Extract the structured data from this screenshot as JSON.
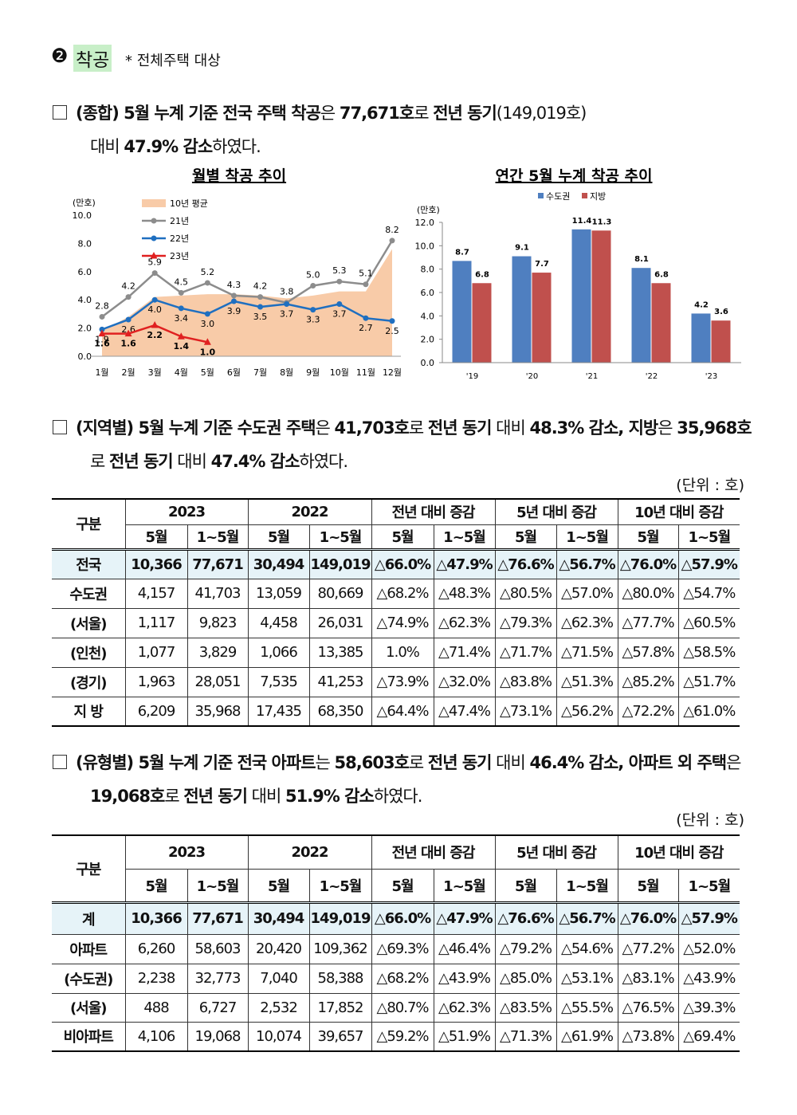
{
  "heading": {
    "number": "❷",
    "title": "착공",
    "note": "* 전체주택 대상"
  },
  "paragraphs": [
    {
      "lines": [
        [
          {
            "text": "(종합) 5월 누계 기준 전국 주택 착공",
            "bold": true
          },
          {
            "text": "은 ",
            "bold": false
          },
          {
            "text": "77,671호",
            "bold": true
          },
          {
            "text": "로 ",
            "bold": false
          },
          {
            "text": "전년 동기",
            "bold": true
          },
          {
            "text": "(149,019호)",
            "bold": false
          }
        ],
        [
          {
            "text": "대비 ",
            "bold": false
          },
          {
            "text": "47.9% 감소",
            "bold": true
          },
          {
            "text": "하였다.",
            "bold": false
          }
        ]
      ]
    },
    {
      "lines": [
        [
          {
            "text": "(지역별) 5월 누계 기준 수도권 주택",
            "bold": true
          },
          {
            "text": "은 ",
            "bold": false
          },
          {
            "text": "41,703호",
            "bold": true
          },
          {
            "text": "로 ",
            "bold": false
          },
          {
            "text": "전년 동기",
            "bold": true
          },
          {
            "text": " 대비 ",
            "bold": false
          },
          {
            "text": "48.3% 감소, 지방",
            "bold": true
          },
          {
            "text": "은 ",
            "bold": false
          },
          {
            "text": "35,968호",
            "bold": true
          }
        ],
        [
          {
            "text": "로 ",
            "bold": false
          },
          {
            "text": "전년 동기",
            "bold": true
          },
          {
            "text": " 대비 ",
            "bold": false
          },
          {
            "text": "47.4% 감소",
            "bold": true
          },
          {
            "text": "하였다.",
            "bold": false
          }
        ]
      ]
    },
    {
      "lines": [
        [
          {
            "text": "(유형별) 5월 누계 기준 전국 아파트",
            "bold": true
          },
          {
            "text": "는 ",
            "bold": false
          },
          {
            "text": "58,603호",
            "bold": true
          },
          {
            "text": "로 ",
            "bold": false
          },
          {
            "text": "전년 동기",
            "bold": true
          },
          {
            "text": " 대비 ",
            "bold": false
          },
          {
            "text": "46.4% 감소, 아파트 외 주택",
            "bold": true
          },
          {
            "text": "은",
            "bold": false
          }
        ],
        [
          {
            "text": "19,068호",
            "bold": true
          },
          {
            "text": "로 ",
            "bold": false
          },
          {
            "text": "전년 동기",
            "bold": true
          },
          {
            "text": " 대비 ",
            "bold": false
          },
          {
            "text": "51.9% 감소",
            "bold": true
          },
          {
            "text": "하였다.",
            "bold": false
          }
        ]
      ]
    }
  ],
  "chart_data": [
    {
      "type": "line",
      "title": "월별 착공 추이",
      "ylabel": "(만호)",
      "categories": [
        "1월",
        "2월",
        "3월",
        "4월",
        "5월",
        "6월",
        "7월",
        "8월",
        "9월",
        "10월",
        "11월",
        "12월"
      ],
      "ylim": [
        0,
        10
      ],
      "yticks": [
        {
          "value": 0,
          "label": "0.0"
        },
        {
          "value": 2,
          "label": "2.0"
        },
        {
          "value": 4,
          "label": "4.0"
        },
        {
          "value": 6,
          "label": "6.0"
        },
        {
          "value": 8,
          "label": "8.0"
        },
        {
          "value": 10,
          "label": "10.0"
        }
      ],
      "series": [
        {
          "name": "10년 평균",
          "kind": "area",
          "color": "#f8cba8",
          "values": [
            1.8,
            2.8,
            4.2,
            4.3,
            4.4,
            4.4,
            4.3,
            4.1,
            4.3,
            4.6,
            4.6,
            7.6
          ]
        },
        {
          "name": "21년",
          "kind": "line",
          "marker": "circle",
          "color": "#8c8c8c",
          "values": [
            2.8,
            4.2,
            5.9,
            4.5,
            5.2,
            4.3,
            4.2,
            3.8,
            5.0,
            5.3,
            5.1,
            8.2
          ],
          "value_labels": [
            "2.8",
            "4.2",
            "5.9",
            "4.5",
            "5.2",
            "4.3",
            "4.2",
            "3.8",
            "5.0",
            "5.3",
            "5.1",
            "8.2"
          ]
        },
        {
          "name": "22년",
          "kind": "line",
          "marker": "circle",
          "color": "#1f6fc0",
          "values": [
            1.9,
            2.6,
            4.0,
            3.4,
            3.0,
            3.9,
            3.5,
            3.7,
            3.3,
            3.7,
            2.7,
            2.5
          ],
          "value_labels": [
            "1.9",
            "2.6",
            "4.0",
            "3.4",
            "3.0",
            "3.9",
            "3.5",
            "3.7",
            "3.3",
            "3.7",
            "2.7",
            "2.5"
          ]
        },
        {
          "name": "23년",
          "kind": "line",
          "marker": "triangle",
          "color": "#e02020",
          "values": [
            1.6,
            1.6,
            2.2,
            1.4,
            1.0,
            null,
            null,
            null,
            null,
            null,
            null,
            null
          ],
          "value_labels": [
            "1.6",
            "1.6",
            "2.2",
            "1.4",
            "1.0",
            null,
            null,
            null,
            null,
            null,
            null,
            null
          ]
        }
      ]
    },
    {
      "type": "bar",
      "title": "연간 5월 누계 착공 추이",
      "ylabel": "(만호)",
      "categories": [
        "'19",
        "'20",
        "'21",
        "'22",
        "'23"
      ],
      "ylim": [
        0,
        12
      ],
      "yticks": [
        {
          "value": 0,
          "label": "0.0"
        },
        {
          "value": 2,
          "label": "2.0"
        },
        {
          "value": 4,
          "label": "4.0"
        },
        {
          "value": 6,
          "label": "6.0"
        },
        {
          "value": 8,
          "label": "8.0"
        },
        {
          "value": 10,
          "label": "10.0"
        },
        {
          "value": 12,
          "label": "12.0"
        }
      ],
      "series": [
        {
          "name": "수도권",
          "color": "#4f7fc0",
          "values": [
            8.7,
            9.1,
            11.4,
            8.1,
            4.2
          ]
        },
        {
          "name": "지방",
          "color": "#c0504d",
          "values": [
            6.8,
            7.7,
            11.3,
            6.8,
            3.6
          ]
        }
      ]
    }
  ],
  "tables": [
    {
      "unit": "(단위 : 호)",
      "header": [
        [
          "구분",
          "2023",
          "2022",
          "전년 대비 증감",
          "5년 대비 증감",
          "10년 대비 증감"
        ],
        [
          "5월",
          "1~5월",
          "5월",
          "1~5월",
          "5월",
          "1~5월",
          "5월",
          "1~5월",
          "5월",
          "1~5월"
        ]
      ],
      "rows": [
        [
          "전국",
          "10,366",
          "77,671",
          "30,494",
          "149,019",
          "△66.0%",
          "△47.9%",
          "△76.6%",
          "△56.7%",
          "△76.0%",
          "△57.9%"
        ],
        [
          "수도권",
          "4,157",
          "41,703",
          "13,059",
          "80,669",
          "△68.2%",
          "△48.3%",
          "△80.5%",
          "△57.0%",
          "△80.0%",
          "△54.7%"
        ],
        [
          "(서울)",
          "1,117",
          "9,823",
          "4,458",
          "26,031",
          "△74.9%",
          "△62.3%",
          "△79.3%",
          "△62.3%",
          "△77.7%",
          "△60.5%"
        ],
        [
          "(인천)",
          "1,077",
          "3,829",
          "1,066",
          "13,385",
          "1.0%",
          "△71.4%",
          "△71.7%",
          "△71.5%",
          "△57.8%",
          "△58.5%"
        ],
        [
          "(경기)",
          "1,963",
          "28,051",
          "7,535",
          "41,253",
          "△73.9%",
          "△32.0%",
          "△83.8%",
          "△51.3%",
          "△85.2%",
          "△51.7%"
        ],
        [
          "지 방",
          "6,209",
          "35,968",
          "17,435",
          "68,350",
          "△64.4%",
          "△47.4%",
          "△73.1%",
          "△56.2%",
          "△72.2%",
          "△61.0%"
        ]
      ]
    },
    {
      "unit": "(단위 : 호)",
      "header": [
        [
          "구분",
          "2023",
          "2022",
          "전년 대비 증감",
          "5년 대비 증감",
          "10년 대비 증감"
        ],
        [
          "5월",
          "1~5월",
          "5월",
          "1~5월",
          "5월",
          "1~5월",
          "5월",
          "1~5월",
          "5월",
          "1~5월"
        ]
      ],
      "rows": [
        [
          "계",
          "10,366",
          "77,671",
          "30,494",
          "149,019",
          "△66.0%",
          "△47.9%",
          "△76.6%",
          "△56.7%",
          "△76.0%",
          "△57.9%"
        ],
        [
          "아파트",
          "6,260",
          "58,603",
          "20,420",
          "109,362",
          "△69.3%",
          "△46.4%",
          "△79.2%",
          "△54.6%",
          "△77.2%",
          "△52.0%"
        ],
        [
          "(수도권)",
          "2,238",
          "32,773",
          "7,040",
          "58,388",
          "△68.2%",
          "△43.9%",
          "△85.0%",
          "△53.1%",
          "△83.1%",
          "△43.9%"
        ],
        [
          "(서울)",
          "488",
          "6,727",
          "2,532",
          "17,852",
          "△80.7%",
          "△62.3%",
          "△83.5%",
          "△55.5%",
          "△76.5%",
          "△39.3%"
        ],
        [
          "비아파트",
          "4,106",
          "19,068",
          "10,074",
          "39,657",
          "△59.2%",
          "△51.9%",
          "△71.3%",
          "△61.9%",
          "△73.8%",
          "△69.4%"
        ]
      ]
    }
  ]
}
